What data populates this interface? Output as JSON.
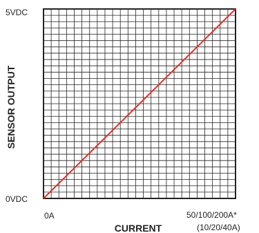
{
  "chart_data": {
    "type": "line",
    "xlabel": "CURRENT",
    "ylabel": "SENSOR OUTPUT",
    "x_tick_labels": [
      "0A",
      "50/100/200A*",
      "(10/20/40A)"
    ],
    "y_tick_labels": [
      "0VDC",
      "5VDC"
    ],
    "xlim": [
      0,
      1
    ],
    "ylim": [
      0,
      1
    ],
    "grid": true,
    "grid_divisions": {
      "x": 25,
      "y": 30
    },
    "series": [
      {
        "x": [
          0,
          1
        ],
        "values": [
          0,
          1
        ]
      }
    ]
  },
  "colors": {
    "line": "#e0302a",
    "grid": "#222222",
    "text": "#222222"
  }
}
